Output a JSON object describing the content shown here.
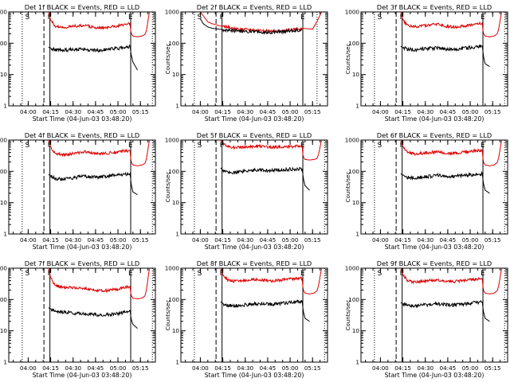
{
  "chart_data": {
    "type": "line",
    "figure": "3x3 grid of light curves, one panel per detector",
    "y_scale": "log",
    "ylim": [
      1,
      1000
    ],
    "y_ticks": [
      "1",
      "10",
      "100",
      "1000"
    ],
    "ylabel": "Counts/sec",
    "xlabel": "Start Time (04-Jun-03 03:48:20)",
    "x_ticks": [
      "04:00",
      "04:15",
      "04:30",
      "04:45",
      "05:00",
      "05:15"
    ],
    "xlim_minutes_after_0348": [
      -1,
      97
    ],
    "grid": false,
    "legend": "in title",
    "series_colors": {
      "events": "#000000",
      "lld": "#dd0000"
    },
    "panels": [
      {
        "title": "Det 1f BLACK = Events, RED = LLD",
        "marks": {
          "S": 11.5,
          "F": 26.5,
          "E": 80.5
        },
        "vlines": {
          "dotted": [
            8,
            95
          ],
          "dashed": [
            22.5
          ],
          "solid": [
            26.5,
            80.5
          ]
        },
        "x": [
          25.5,
          27,
          30,
          35,
          40,
          45,
          50,
          55,
          60,
          65,
          70,
          75,
          80,
          80.5,
          81,
          82,
          85,
          88,
          90,
          91,
          93
        ],
        "events": [
          75,
          70,
          62,
          60,
          62,
          63,
          65,
          60,
          58,
          63,
          68,
          72,
          80,
          55,
          40,
          25,
          14,
          null,
          null,
          null,
          null
        ],
        "lld": [
          1000,
          550,
          350,
          320,
          340,
          360,
          380,
          330,
          310,
          320,
          350,
          380,
          420,
          250,
          200,
          170,
          160,
          170,
          190,
          250,
          1000
        ]
      },
      {
        "title": "Det 2f BLACK = Events, RED = LLD",
        "marks": {
          "S": 11.5,
          "F": 26.5,
          "E": 80.5
        },
        "vlines": {
          "dotted": [
            8,
            90
          ],
          "dashed": [
            22.5
          ],
          "solid": [
            26.5,
            80.5
          ]
        },
        "x": [
          12,
          14,
          17,
          20,
          25,
          30,
          35,
          40,
          45,
          50,
          55,
          60,
          65,
          70,
          75,
          80,
          84,
          87,
          90,
          93
        ],
        "events": [
          600,
          420,
          330,
          300,
          280,
          260,
          250,
          240,
          235,
          230,
          225,
          225,
          230,
          240,
          255,
          270,
          null,
          null,
          null,
          null
        ],
        "lld": [
          1000,
          750,
          480,
          420,
          360,
          330,
          300,
          280,
          265,
          255,
          250,
          248,
          250,
          260,
          280,
          300,
          290,
          280,
          500,
          1000
        ]
      },
      {
        "title": "Det 3f BLACK = Events, RED = LLD",
        "marks": {
          "S": 11.5,
          "F": 26.5,
          "E": 80.5
        },
        "vlines": {
          "dotted": [
            8,
            95
          ],
          "dashed": [
            22.5
          ],
          "solid": [
            26.5,
            80.5
          ]
        },
        "x": [
          25.5,
          27,
          30,
          35,
          40,
          45,
          50,
          55,
          60,
          65,
          70,
          75,
          80,
          80.5,
          81,
          82,
          85,
          88,
          90,
          91,
          93
        ],
        "events": [
          80,
          72,
          65,
          62,
          66,
          68,
          70,
          64,
          62,
          66,
          70,
          74,
          82,
          55,
          35,
          22,
          18,
          null,
          null,
          null,
          null
        ],
        "lld": [
          1000,
          560,
          380,
          340,
          360,
          380,
          400,
          350,
          330,
          340,
          370,
          400,
          440,
          260,
          200,
          170,
          160,
          170,
          200,
          280,
          1000
        ]
      },
      {
        "title": "Det 4f BLACK = Events, RED = LLD",
        "marks": {
          "S": 11.5,
          "F": 26.5,
          "E": 80.5
        },
        "vlines": {
          "dotted": [
            8,
            95
          ],
          "dashed": [
            22.5
          ],
          "solid": [
            26.5,
            80.5
          ]
        },
        "x": [
          25.5,
          27,
          30,
          35,
          40,
          45,
          50,
          55,
          60,
          65,
          70,
          75,
          80,
          80.5,
          81,
          82,
          85,
          88,
          90,
          91,
          93
        ],
        "events": [
          80,
          72,
          58,
          55,
          60,
          65,
          70,
          68,
          65,
          70,
          75,
          78,
          85,
          55,
          35,
          22,
          18,
          null,
          null,
          null,
          null
        ],
        "lld": [
          1000,
          600,
          380,
          340,
          360,
          390,
          420,
          380,
          360,
          380,
          410,
          440,
          460,
          260,
          190,
          160,
          150,
          160,
          180,
          250,
          1000
        ]
      },
      {
        "title": "Det 5f BLACK = Events, RED = LLD",
        "marks": {
          "S": 11.5,
          "F": 26.5,
          "E": 80.5
        },
        "vlines": {
          "dotted": [
            8,
            95
          ],
          "dashed": [
            22.5
          ],
          "solid": [
            26.5,
            80.5
          ]
        },
        "x": [
          25.5,
          27,
          30,
          35,
          40,
          45,
          50,
          55,
          60,
          65,
          70,
          75,
          80,
          80.5,
          81,
          82,
          85,
          88,
          90,
          91,
          93
        ],
        "events": [
          130,
          110,
          95,
          92,
          100,
          105,
          110,
          108,
          105,
          110,
          115,
          118,
          120,
          80,
          55,
          35,
          25,
          null,
          null,
          null,
          null
        ],
        "lld": [
          1000,
          800,
          620,
          580,
          600,
          620,
          640,
          600,
          580,
          600,
          620,
          630,
          640,
          350,
          280,
          240,
          230,
          240,
          260,
          350,
          1000
        ]
      },
      {
        "title": "Det 6f BLACK = Events, RED = LLD",
        "marks": {
          "S": 11.5,
          "F": 26.5,
          "E": 80.5
        },
        "vlines": {
          "dotted": [
            8,
            95
          ],
          "dashed": [
            22.5
          ],
          "solid": [
            26.5,
            80.5
          ]
        },
        "x": [
          25.5,
          27,
          30,
          35,
          40,
          45,
          50,
          55,
          60,
          65,
          70,
          75,
          80,
          80.5,
          81,
          82,
          85,
          88,
          90,
          91,
          93
        ],
        "events": [
          85,
          75,
          65,
          62,
          66,
          70,
          74,
          70,
          68,
          72,
          76,
          80,
          85,
          55,
          38,
          25,
          20,
          null,
          null,
          null,
          null
        ],
        "lld": [
          1000,
          620,
          400,
          360,
          380,
          400,
          430,
          390,
          370,
          390,
          420,
          450,
          470,
          260,
          190,
          160,
          150,
          160,
          190,
          270,
          1000
        ]
      },
      {
        "title": "Det 7f BLACK = Events, RED = LLD",
        "marks": {
          "S": 11.5,
          "F": 26.5,
          "E": 80.5
        },
        "vlines": {
          "dotted": [
            8,
            95
          ],
          "dashed": [
            22.5
          ],
          "solid": [
            26.5,
            80.5
          ]
        },
        "x": [
          25.5,
          27,
          30,
          35,
          40,
          45,
          50,
          55,
          60,
          65,
          70,
          75,
          80,
          80.5,
          81,
          82,
          85,
          88,
          90,
          91,
          93
        ],
        "events": [
          55,
          50,
          42,
          40,
          38,
          36,
          35,
          33,
          32,
          33,
          35,
          38,
          45,
          30,
          22,
          16,
          12,
          null,
          null,
          null,
          null
        ],
        "lld": [
          1000,
          500,
          280,
          250,
          240,
          230,
          220,
          200,
          190,
          195,
          210,
          230,
          260,
          160,
          130,
          110,
          105,
          110,
          130,
          200,
          1000
        ]
      },
      {
        "title": "Det 8f BLACK = Events, RED = LLD",
        "marks": {
          "S": 11.5,
          "F": 26.5,
          "E": 80.5
        },
        "vlines": {
          "dotted": [
            8,
            95
          ],
          "dashed": [
            22.5
          ],
          "solid": [
            26.5,
            80.5
          ]
        },
        "x": [
          25.5,
          27,
          30,
          35,
          40,
          45,
          50,
          55,
          60,
          65,
          70,
          75,
          80,
          80.5,
          81,
          82,
          85,
          88,
          90,
          91,
          93
        ],
        "events": [
          85,
          75,
          65,
          62,
          66,
          70,
          74,
          72,
          70,
          74,
          78,
          82,
          88,
          55,
          38,
          25,
          20,
          null,
          null,
          null,
          null
        ],
        "lld": [
          1000,
          650,
          420,
          380,
          400,
          420,
          440,
          410,
          390,
          410,
          440,
          460,
          480,
          260,
          190,
          160,
          150,
          160,
          190,
          280,
          1000
        ]
      },
      {
        "title": "Det 9f BLACK = Events, RED = LLD",
        "marks": {
          "S": 11.5,
          "F": 26.5,
          "E": 80.5
        },
        "vlines": {
          "dotted": [
            8,
            95
          ],
          "dashed": [
            22.5
          ],
          "solid": [
            26.5,
            80.5
          ]
        },
        "x": [
          25.5,
          27,
          30,
          35,
          40,
          45,
          50,
          55,
          60,
          65,
          70,
          75,
          80,
          80.5,
          81,
          82,
          85,
          88,
          90,
          91,
          93
        ],
        "events": [
          80,
          72,
          65,
          62,
          66,
          70,
          72,
          68,
          66,
          70,
          74,
          78,
          84,
          55,
          38,
          25,
          20,
          null,
          null,
          null,
          null
        ],
        "lld": [
          1000,
          620,
          400,
          360,
          380,
          400,
          420,
          390,
          370,
          390,
          420,
          440,
          460,
          260,
          190,
          160,
          150,
          160,
          190,
          270,
          1000
        ]
      }
    ]
  }
}
